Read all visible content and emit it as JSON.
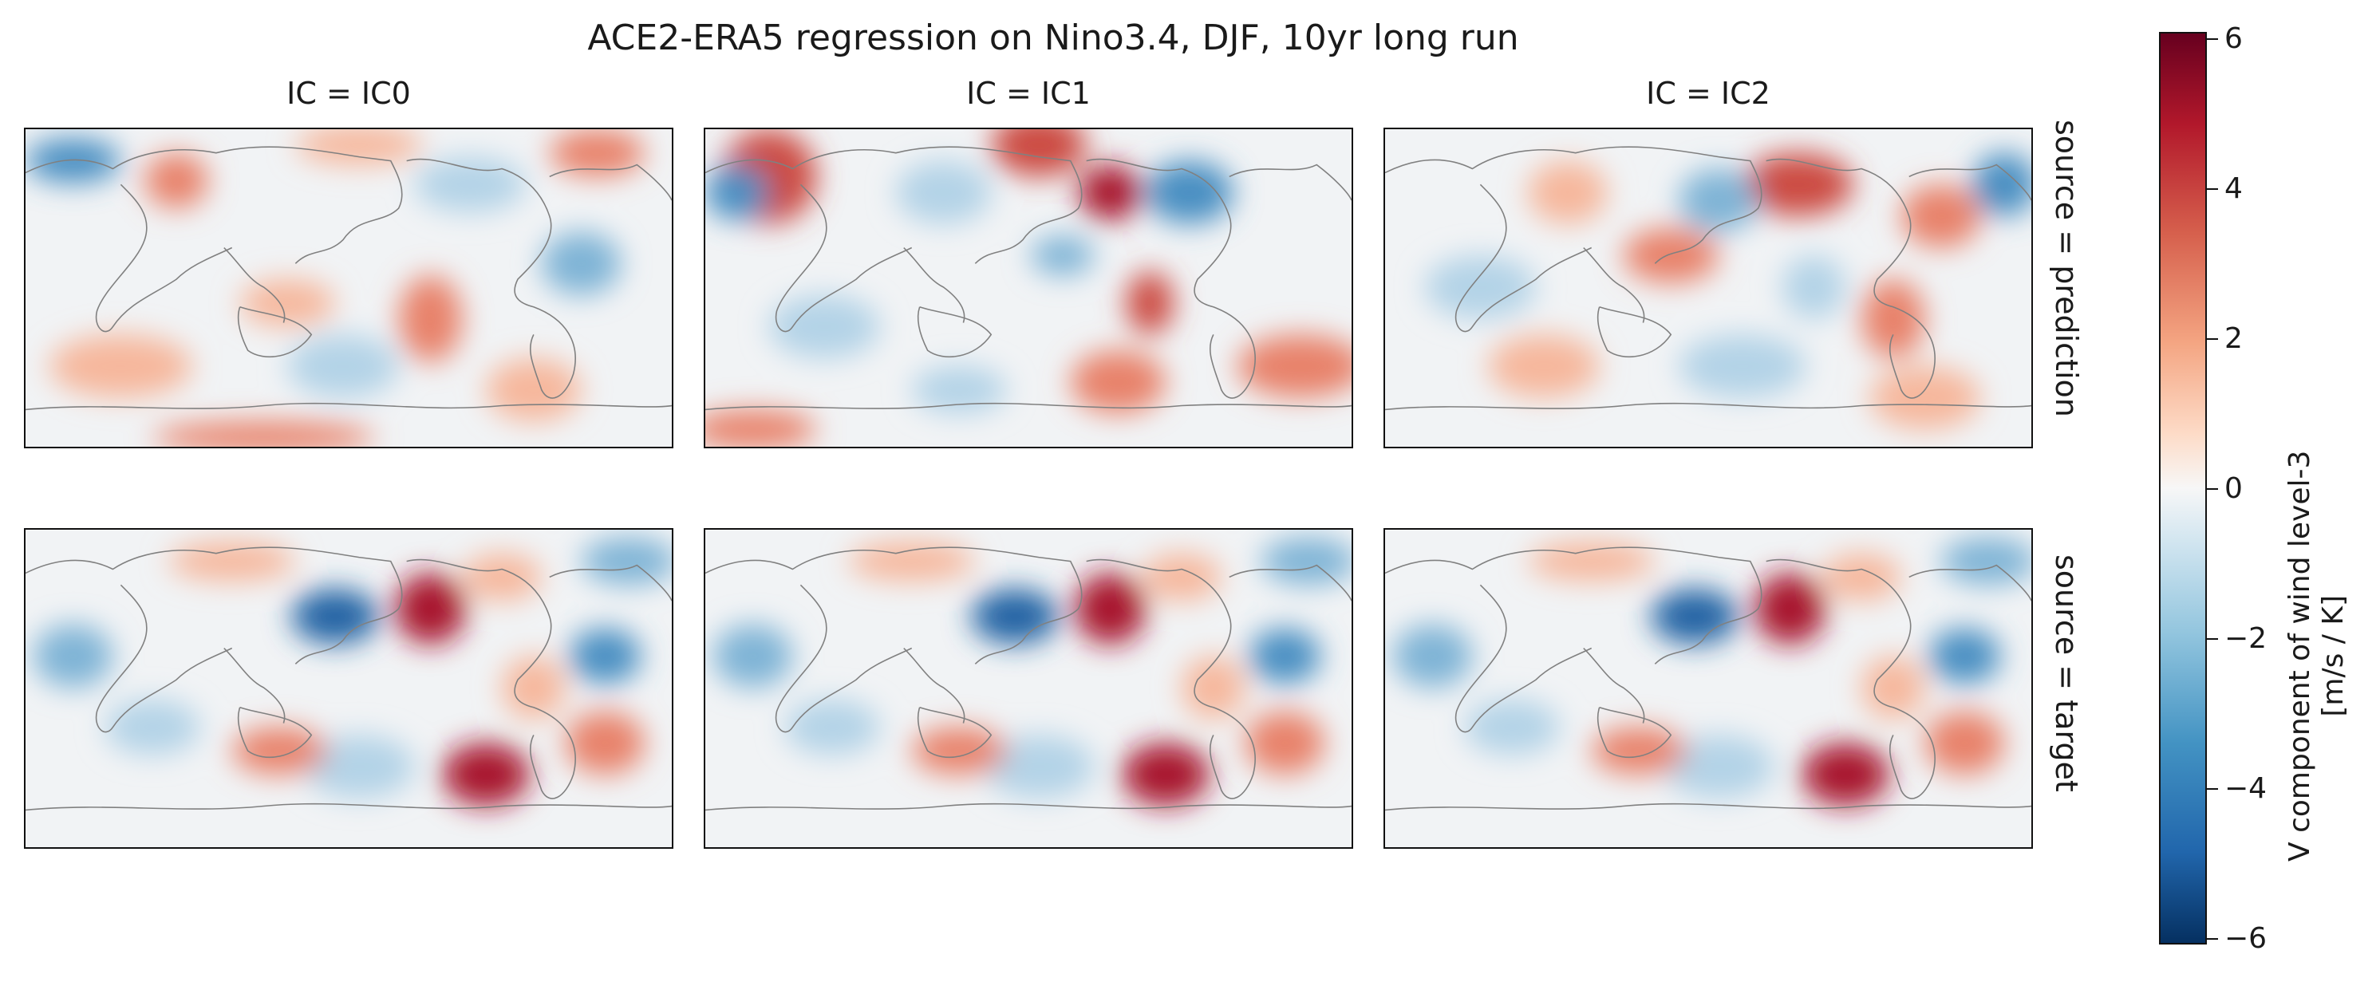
{
  "figure": {
    "title": "ACE2-ERA5 regression on Nino3.4, DJF, 10yr long run"
  },
  "columns": [
    "IC = IC0",
    "IC = IC1",
    "IC = IC2"
  ],
  "rows": [
    "source = prediction",
    "source = target"
  ],
  "colorbar": {
    "label_line1": "V component of wind level-3",
    "label_line2": "[m/s / K]",
    "ticks": [
      "6",
      "4",
      "2",
      "0",
      "−2",
      "−4",
      "−6"
    ],
    "colormap": "RdBu_r",
    "range": [
      -6,
      6
    ],
    "colors": {
      "high": "#67001f",
      "mid": "#f7f7f7",
      "low": "#053061"
    }
  },
  "map": {
    "projection": "PlateCarree",
    "central_longitude": 180,
    "coastline_color": "#808080"
  }
}
